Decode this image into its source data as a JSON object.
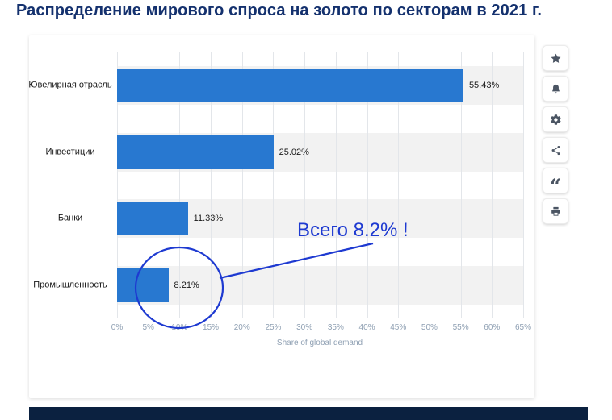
{
  "page": {
    "title": "Распределение мирового спроса на золото по секторам в 2021 г.",
    "title_color": "#14316e"
  },
  "chart_data": {
    "type": "bar",
    "orientation": "horizontal",
    "title": "Распределение мирового спроса на золото по секторам в 2021 г.",
    "categories": [
      "Ювелирная отрасль",
      "Инвестиции",
      "Банки",
      "Промышленность"
    ],
    "values": [
      55.43,
      25.02,
      11.33,
      8.21
    ],
    "value_labels": [
      "55.43%",
      "25.02%",
      "11.33%",
      "8.21%"
    ],
    "xlabel": "Share of global demand",
    "xlim": [
      0,
      65
    ],
    "xtick_labels": [
      "0%",
      "5%",
      "10%",
      "15%",
      "20%",
      "25%",
      "30%",
      "35%",
      "40%",
      "45%",
      "50%",
      "55%",
      "60%",
      "65%"
    ],
    "grid": true,
    "legend": false,
    "bar_color": "#2878d0",
    "band_color": "#f2f2f2"
  },
  "annotation": {
    "text": "Всего 8.2% !",
    "color": "#1e3ad1",
    "target_category": "Промышленность"
  },
  "toolbar": {
    "buttons": [
      {
        "name": "favorite",
        "icon": "star-icon"
      },
      {
        "name": "alerts",
        "icon": "bell-icon"
      },
      {
        "name": "settings",
        "icon": "gear-icon"
      },
      {
        "name": "share",
        "icon": "share-icon"
      },
      {
        "name": "cite",
        "icon": "quote-icon"
      },
      {
        "name": "print",
        "icon": "printer-icon"
      }
    ],
    "icon_color": "#4b5563"
  },
  "footer": {
    "color": "#0b2140"
  }
}
